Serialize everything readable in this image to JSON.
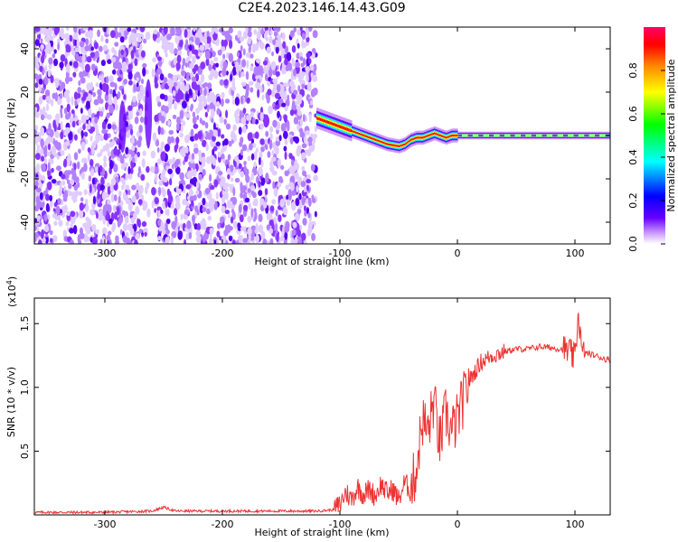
{
  "title": "C2E4.2023.146.14.43.G09",
  "chart_data": [
    {
      "type": "heatmap",
      "xlabel": "Height of straight line (km)",
      "ylabel": "Frequency (Hz)",
      "xlim": [
        -360,
        130
      ],
      "ylim": [
        -50,
        50
      ],
      "xticks": [
        -300,
        -200,
        -100,
        0,
        100
      ],
      "yticks": [
        -40,
        -20,
        0,
        20,
        40
      ],
      "colorbar": {
        "label": "Normalized spectral amplitude",
        "range": [
          0,
          1
        ],
        "ticks": [
          "0.0",
          "0.2",
          "0.4",
          "0.6",
          "0.8"
        ],
        "colors": [
          "#ffffff",
          "#cc99ff",
          "#6600ff",
          "#0000ff",
          "#00ffff",
          "#00ff00",
          "#ffff00",
          "#ff8800",
          "#ff0000",
          "#ff0066"
        ]
      },
      "noise_region_km": [
        -360,
        -120
      ],
      "ridge": {
        "x": [
          -120,
          -110,
          -100,
          -90,
          -80,
          -70,
          -60,
          -50,
          -45,
          -40,
          -35,
          -30,
          -25,
          -20,
          -15,
          -10,
          -5,
          0,
          20,
          40,
          60,
          80,
          100,
          130
        ],
        "y": [
          8,
          6,
          4,
          2,
          0,
          -2,
          -4,
          -5,
          -4,
          -2,
          -1,
          -1,
          0,
          1,
          0,
          -1,
          0,
          0,
          0,
          0,
          0,
          0,
          0,
          0
        ]
      }
    },
    {
      "type": "line",
      "xlabel": "Height of straight line (km)",
      "ylabel": "SNR (10 * v/v)",
      "yscale_label": "(x10",
      "yscale_exp": "4",
      "xlim": [
        -360,
        130
      ],
      "ylim": [
        0,
        1.7
      ],
      "xticks": [
        -300,
        -200,
        -100,
        0,
        100
      ],
      "yticks": [
        0.5,
        1.0,
        1.5
      ],
      "line_color": "#ee3333",
      "series": [
        {
          "x": [
            -360,
            -300,
            -260,
            -250,
            -240,
            -200,
            -150,
            -120,
            -105,
            -100,
            -95,
            -90,
            -85,
            -80,
            -75,
            -70,
            -65,
            -60,
            -55,
            -50,
            -45,
            -40,
            -35,
            -30,
            -25,
            -20,
            -15,
            -10,
            -5,
            0,
            5,
            10,
            20,
            30,
            40,
            50,
            60,
            70,
            80,
            90,
            95,
            100,
            103,
            106,
            110,
            120,
            130
          ],
          "y": [
            0.02,
            0.02,
            0.03,
            0.06,
            0.03,
            0.03,
            0.03,
            0.03,
            0.04,
            0.08,
            0.18,
            0.12,
            0.22,
            0.16,
            0.2,
            0.15,
            0.24,
            0.17,
            0.2,
            0.12,
            0.25,
            0.2,
            0.35,
            0.75,
            0.65,
            0.9,
            0.55,
            0.8,
            0.65,
            0.75,
            0.9,
            1.05,
            1.2,
            1.25,
            1.28,
            1.3,
            1.3,
            1.32,
            1.31,
            1.3,
            1.28,
            1.22,
            1.6,
            1.25,
            1.27,
            1.24,
            1.21
          ]
        }
      ]
    }
  ]
}
